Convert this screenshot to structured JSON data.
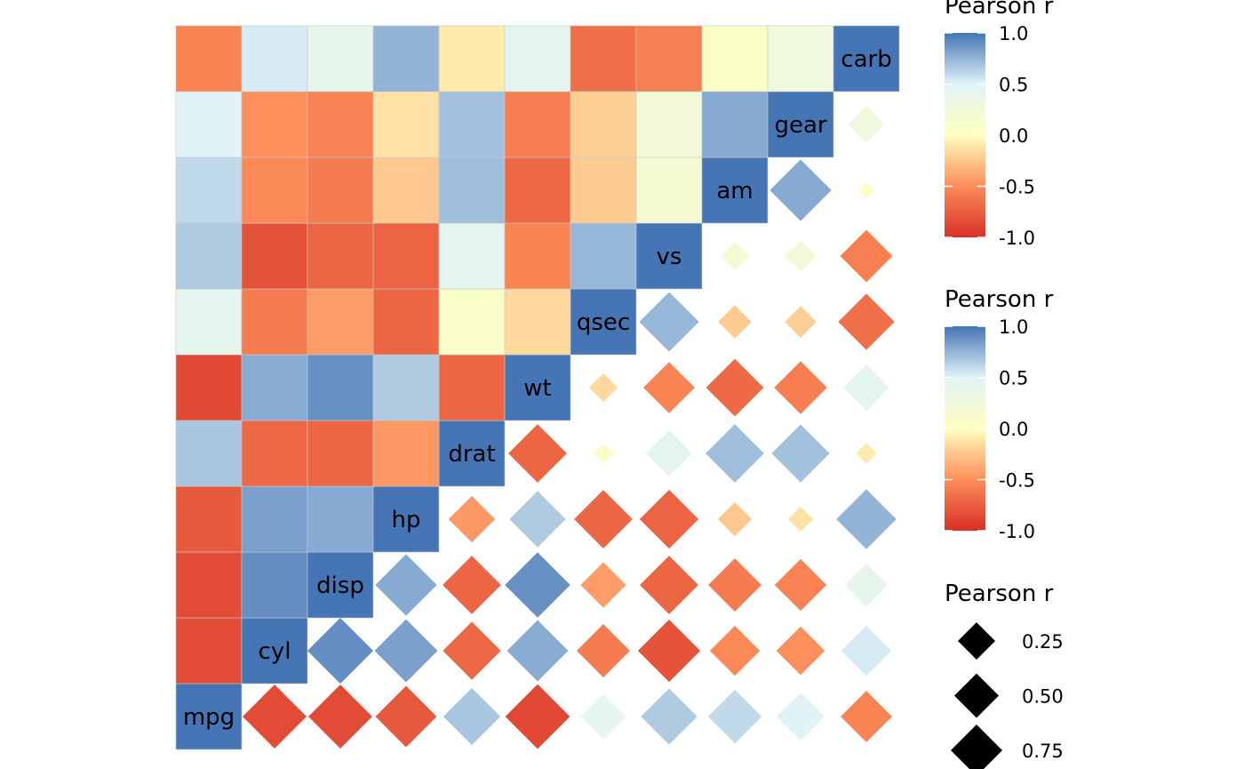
{
  "chart_data": {
    "type": "heatmap",
    "variables": [
      "mpg",
      "cyl",
      "disp",
      "hp",
      "drat",
      "wt",
      "qsec",
      "vs",
      "am",
      "gear",
      "carb"
    ],
    "correlation_matrix": [
      [
        1.0,
        -0.85,
        -0.85,
        -0.78,
        0.68,
        -0.87,
        0.42,
        0.66,
        0.6,
        0.48,
        -0.55
      ],
      [
        -0.85,
        1.0,
        0.9,
        0.83,
        -0.7,
        0.78,
        -0.59,
        -0.81,
        -0.52,
        -0.49,
        0.53
      ],
      [
        -0.85,
        0.9,
        1.0,
        0.79,
        -0.71,
        0.89,
        -0.43,
        -0.71,
        -0.59,
        -0.56,
        0.39
      ],
      [
        -0.78,
        0.83,
        0.79,
        1.0,
        -0.45,
        0.66,
        -0.71,
        -0.72,
        -0.24,
        -0.13,
        0.75
      ],
      [
        0.68,
        -0.7,
        -0.71,
        -0.45,
        1.0,
        -0.71,
        0.09,
        0.44,
        0.71,
        0.7,
        -0.09
      ],
      [
        -0.87,
        0.78,
        0.89,
        0.66,
        -0.71,
        1.0,
        -0.17,
        -0.55,
        -0.69,
        -0.58,
        0.43
      ],
      [
        0.42,
        -0.59,
        -0.43,
        -0.71,
        0.09,
        -0.17,
        1.0,
        0.74,
        -0.23,
        -0.21,
        -0.66
      ],
      [
        0.66,
        -0.81,
        -0.71,
        -0.72,
        0.44,
        -0.55,
        0.74,
        1.0,
        0.17,
        0.21,
        -0.57
      ],
      [
        0.6,
        -0.52,
        -0.59,
        -0.24,
        0.71,
        -0.69,
        -0.23,
        0.17,
        1.0,
        0.79,
        0.06
      ],
      [
        0.48,
        -0.49,
        -0.56,
        -0.13,
        0.7,
        -0.58,
        -0.21,
        0.21,
        0.79,
        1.0,
        0.27
      ],
      [
        -0.55,
        0.53,
        0.39,
        0.75,
        -0.09,
        0.43,
        -0.66,
        -0.57,
        0.06,
        0.27,
        1.0
      ]
    ],
    "lower_triangle": "filled-tiles",
    "upper_triangle": "diamonds-sized-by-abs-r",
    "diagonal": "variable-name-labels",
    "color_scale": {
      "stops": [
        -1.0,
        -0.5,
        0.0,
        0.5,
        1.0
      ],
      "colors": [
        "#d73027",
        "#fc8d59",
        "#ffffbf",
        "#e0f3f8",
        "#4575b4"
      ]
    },
    "legends": [
      {
        "title": "Pearson r",
        "kind": "colorbar",
        "ticks": [
          "1.0",
          "0.5",
          "0.0",
          "-0.5",
          "-1.0"
        ],
        "tick_values": [
          1.0,
          0.5,
          0.0,
          -0.5,
          -1.0
        ]
      },
      {
        "title": "Pearson r",
        "kind": "colorbar",
        "ticks": [
          "1.0",
          "0.5",
          "0.0",
          "-0.5",
          "-1.0"
        ],
        "tick_values": [
          1.0,
          0.5,
          0.0,
          -0.5,
          -1.0
        ]
      },
      {
        "title": "Pearson r",
        "kind": "size",
        "ticks": [
          "0.25",
          "0.50",
          "0.75"
        ],
        "tick_values": [
          0.25,
          0.5,
          0.75
        ]
      }
    ],
    "legend_position": "right",
    "grid": false
  }
}
